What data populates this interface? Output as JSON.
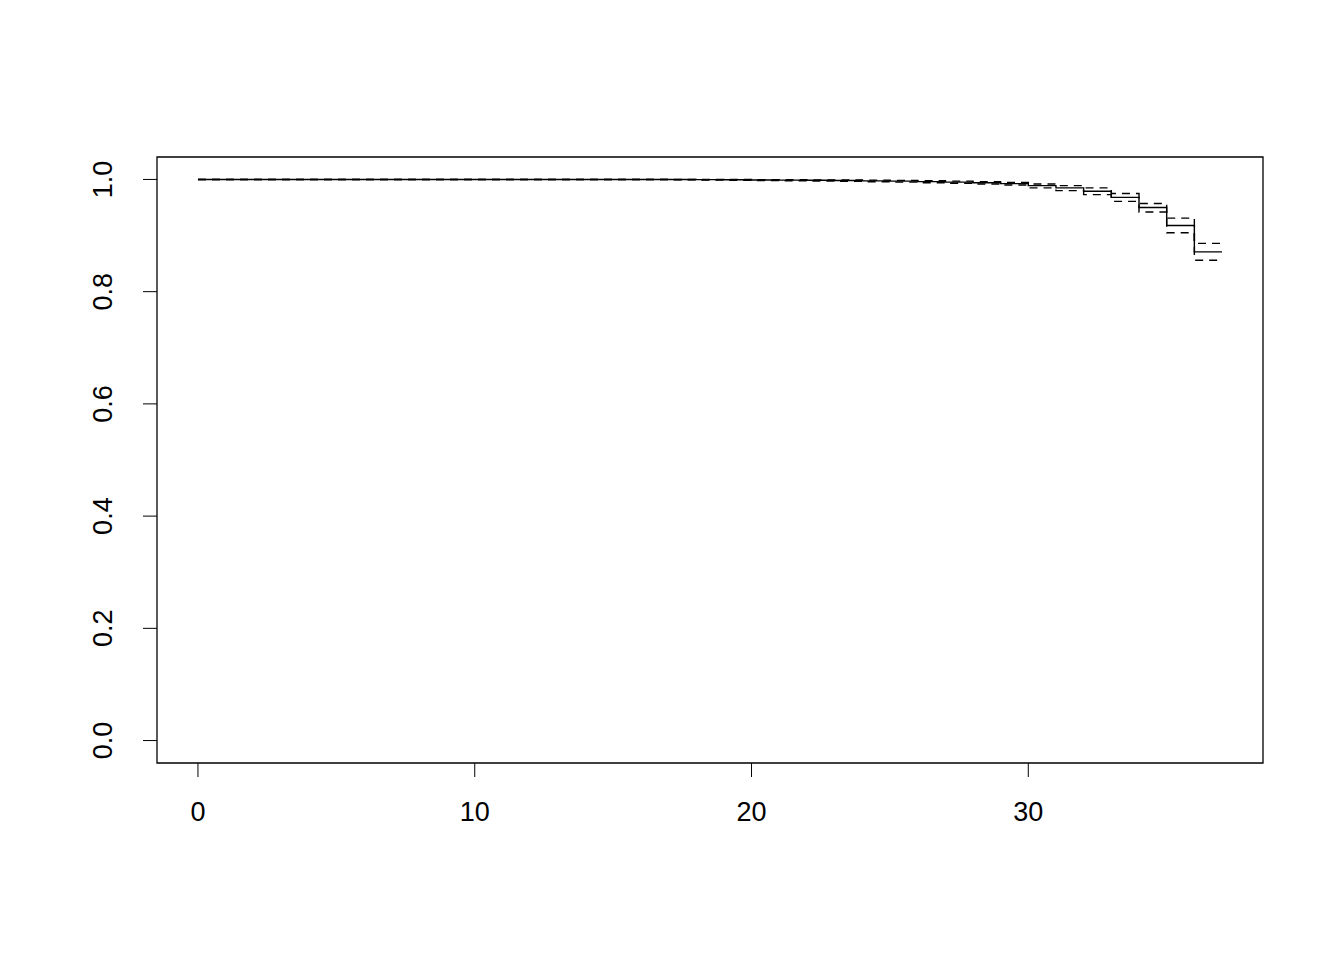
{
  "chart_data": {
    "type": "step",
    "x": [
      0,
      17,
      18,
      19,
      20,
      21,
      22,
      23,
      24,
      25,
      26,
      27,
      28,
      29,
      30,
      31,
      32,
      33,
      34,
      35,
      36,
      37
    ],
    "series": [
      {
        "values": [
          1,
          0.9998,
          0.9996,
          0.9994,
          0.9991,
          0.9988,
          0.9985,
          0.998,
          0.9975,
          0.997,
          0.9962,
          0.9953,
          0.9942,
          0.9925,
          0.989,
          0.985,
          0.979,
          0.968,
          0.95,
          0.918,
          0.871,
          0.871
        ],
        "color": "#000000",
        "line_style": "solid"
      },
      {
        "values": [
          1,
          1,
          0.9999,
          0.9998,
          0.9997,
          0.9995,
          0.9993,
          0.999,
          0.9987,
          0.9983,
          0.9977,
          0.997,
          0.9961,
          0.9947,
          0.992,
          0.989,
          0.985,
          0.975,
          0.957,
          0.931,
          0.886,
          0.886
        ],
        "color": "#000000",
        "line_style": "dashed"
      },
      {
        "values": [
          1,
          0.9992,
          0.9988,
          0.9985,
          0.998,
          0.9976,
          0.9972,
          0.9965,
          0.9958,
          0.9952,
          0.9942,
          0.9932,
          0.9918,
          0.99,
          0.985,
          0.98,
          0.973,
          0.961,
          0.942,
          0.905,
          0.856,
          0.856
        ],
        "color": "#000000",
        "line_style": "dashed"
      }
    ],
    "xlim": [
      -1.48,
      38.48
    ],
    "ylim": [
      -0.04,
      1.04
    ],
    "xticks": [
      0,
      10,
      20,
      30
    ],
    "yticks": [
      {
        "value": 0,
        "label": "0.0"
      },
      0.2,
      0.4,
      0.6,
      0.8,
      {
        "value": 1,
        "label": "1.0"
      }
    ],
    "grid": false
  }
}
